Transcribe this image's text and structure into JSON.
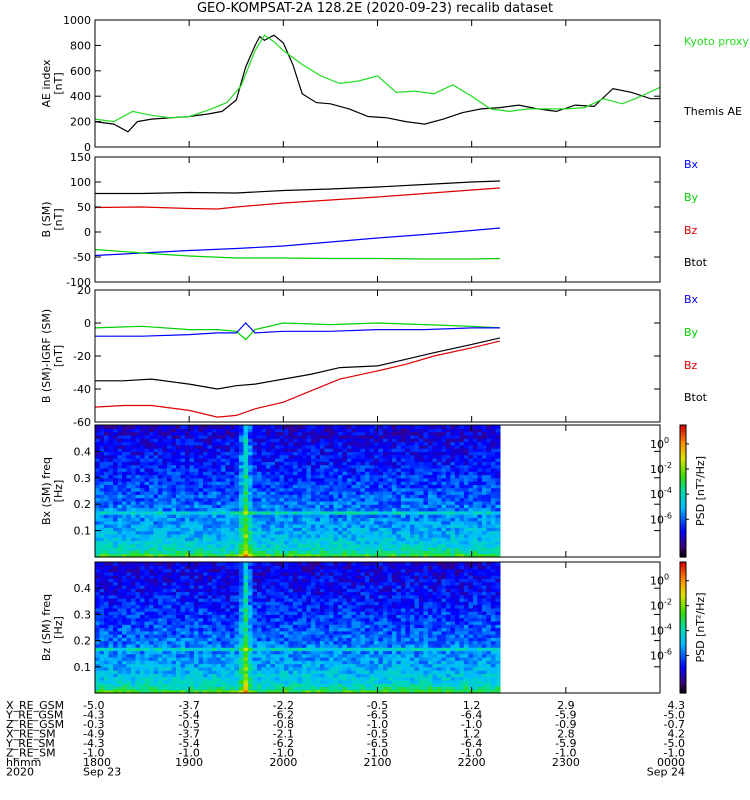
{
  "title": "GEO-KOMPSAT-2A 128.2E (2020-09-23) recalib dataset",
  "colors": {
    "black": "#000000",
    "red": "#e00000",
    "green": "#00d000",
    "blue": "#0000ff",
    "kyoto": "#22dd22"
  },
  "chart_data": [
    {
      "type": "line",
      "panel": "ae",
      "ylabel": "AE index [nT]",
      "ylim": [
        0,
        1000
      ],
      "yticks": [
        0,
        200,
        400,
        600,
        800,
        1000
      ],
      "xlim": [
        18,
        24
      ],
      "legend": [
        "Kyoto proxy AE",
        "Themis AE"
      ],
      "series": [
        {
          "name": "Themis AE",
          "color": "black",
          "x": [
            18.0,
            18.2,
            18.35,
            18.45,
            18.6,
            18.8,
            19.0,
            19.2,
            19.35,
            19.5,
            19.6,
            19.7,
            19.75,
            19.8,
            19.9,
            20.0,
            20.1,
            20.2,
            20.35,
            20.5,
            20.7,
            20.9,
            21.1,
            21.3,
            21.5,
            21.7,
            21.9,
            22.1,
            22.3,
            22.5,
            22.7,
            22.9,
            23.1,
            23.3,
            23.5,
            23.7,
            23.9,
            24.0
          ],
          "y": [
            200,
            180,
            120,
            200,
            220,
            230,
            240,
            260,
            280,
            370,
            630,
            800,
            870,
            840,
            880,
            820,
            650,
            420,
            350,
            340,
            300,
            240,
            230,
            200,
            180,
            220,
            270,
            300,
            310,
            330,
            300,
            280,
            330,
            320,
            460,
            430,
            380,
            380
          ]
        },
        {
          "name": "Kyoto proxy AE",
          "color": "kyoto",
          "x": [
            18.0,
            18.2,
            18.4,
            18.6,
            18.8,
            19.0,
            19.2,
            19.4,
            19.55,
            19.7,
            19.8,
            19.9,
            20.0,
            20.2,
            20.4,
            20.6,
            20.8,
            21.0,
            21.2,
            21.4,
            21.6,
            21.8,
            22.0,
            22.2,
            22.4,
            22.6,
            22.8,
            23.0,
            23.2,
            23.4,
            23.6,
            23.8,
            24.0
          ],
          "y": [
            220,
            200,
            280,
            250,
            230,
            240,
            290,
            350,
            480,
            760,
            880,
            830,
            760,
            650,
            560,
            500,
            520,
            560,
            430,
            440,
            420,
            490,
            400,
            300,
            280,
            300,
            300,
            300,
            310,
            380,
            340,
            400,
            470
          ]
        }
      ]
    },
    {
      "type": "line",
      "panel": "b",
      "ylabel": "B (SM) [nT]",
      "ylim": [
        -100,
        150
      ],
      "yticks": [
        -100,
        -50,
        0,
        50,
        100,
        150
      ],
      "xlim": [
        18,
        24
      ],
      "legend": [
        "Bx",
        "By",
        "Bz",
        "Btot"
      ],
      "series": [
        {
          "name": "Btot",
          "color": "black",
          "x": [
            18.0,
            18.5,
            19.0,
            19.5,
            20.0,
            20.5,
            21.0,
            21.5,
            22.0,
            22.3
          ],
          "y": [
            77,
            77,
            79,
            78,
            83,
            86,
            90,
            95,
            100,
            102
          ]
        },
        {
          "name": "Bz",
          "color": "red",
          "x": [
            18.0,
            18.5,
            19.0,
            19.3,
            19.5,
            20.0,
            20.5,
            21.0,
            21.5,
            22.0,
            22.3
          ],
          "y": [
            49,
            50,
            47,
            46,
            50,
            58,
            64,
            70,
            77,
            84,
            88
          ]
        },
        {
          "name": "Bx",
          "color": "blue",
          "x": [
            18.0,
            18.5,
            19.0,
            19.5,
            20.0,
            20.5,
            21.0,
            21.5,
            22.0,
            22.3
          ],
          "y": [
            -47,
            -42,
            -37,
            -33,
            -28,
            -20,
            -12,
            -5,
            3,
            8
          ]
        },
        {
          "name": "By",
          "color": "green",
          "x": [
            18.0,
            18.5,
            19.0,
            19.5,
            20.0,
            20.5,
            21.0,
            21.5,
            22.0,
            22.3
          ],
          "y": [
            -35,
            -42,
            -48,
            -52,
            -52,
            -53,
            -53,
            -54,
            -54,
            -53
          ]
        }
      ]
    },
    {
      "type": "line",
      "panel": "db",
      "ylabel": "B (SM)-IGRF (SM) [nT]",
      "ylim": [
        -60,
        20
      ],
      "yticks": [
        -60,
        -40,
        -20,
        0,
        20
      ],
      "xlim": [
        18,
        24
      ],
      "legend": [
        "Bx",
        "By",
        "Bz",
        "Btot"
      ],
      "series": [
        {
          "name": "By",
          "color": "green",
          "x": [
            18.0,
            18.5,
            19.0,
            19.3,
            19.5,
            19.6,
            19.7,
            20.0,
            20.5,
            21.0,
            21.5,
            22.0,
            22.3
          ],
          "y": [
            -3,
            -2,
            -4,
            -4,
            -5,
            -10,
            -4,
            0,
            -1,
            0,
            -1,
            -2,
            -3
          ]
        },
        {
          "name": "Bx",
          "color": "blue",
          "x": [
            18.0,
            18.5,
            19.0,
            19.3,
            19.5,
            19.6,
            19.7,
            20.0,
            20.5,
            21.0,
            21.5,
            22.0,
            22.3
          ],
          "y": [
            -8,
            -8,
            -7,
            -6,
            -6,
            0,
            -6,
            -5,
            -5,
            -4,
            -4,
            -3,
            -3
          ]
        },
        {
          "name": "Btot",
          "color": "black",
          "x": [
            18.0,
            18.3,
            18.6,
            19.0,
            19.3,
            19.5,
            19.7,
            20.0,
            20.3,
            20.6,
            21.0,
            21.3,
            21.6,
            22.0,
            22.3
          ],
          "y": [
            -35,
            -35,
            -34,
            -37,
            -40,
            -38,
            -37,
            -34,
            -31,
            -27,
            -26,
            -22,
            -18,
            -13,
            -9
          ]
        },
        {
          "name": "Bz",
          "color": "red",
          "x": [
            18.0,
            18.3,
            18.6,
            19.0,
            19.3,
            19.5,
            19.7,
            20.0,
            20.3,
            20.6,
            21.0,
            21.3,
            21.6,
            22.0,
            22.3
          ],
          "y": [
            -51,
            -50,
            -50,
            -53,
            -57,
            -56,
            -52,
            -48,
            -41,
            -34,
            -29,
            -25,
            -20,
            -15,
            -11
          ]
        }
      ]
    },
    {
      "type": "heatmap",
      "panel": "spec_bx",
      "ylabel": "Bx (SM) freq [Hz]",
      "ylim": [
        0,
        0.5
      ],
      "yticks": [
        0.1,
        0.2,
        0.3,
        0.4
      ],
      "xlim": [
        18,
        24
      ],
      "data_end": 22.3,
      "zlabel": "PSD [nT²/Hz]",
      "zlim_log10": [
        -9,
        1.5
      ],
      "zticks": [
        "10^0",
        "10^-2",
        "10^-4",
        "10^-6"
      ]
    },
    {
      "type": "heatmap",
      "panel": "spec_bz",
      "ylabel": "Bz (SM) freq [Hz]",
      "ylim": [
        0,
        0.5
      ],
      "yticks": [
        0.1,
        0.2,
        0.3,
        0.4
      ],
      "xlim": [
        18,
        24
      ],
      "data_end": 22.3,
      "zlabel": "PSD [nT²/Hz]",
      "zlim_log10": [
        -9,
        1.5
      ],
      "zticks": [
        "10^0",
        "10^-2",
        "10^-4",
        "10^-6"
      ]
    }
  ],
  "ephemeris": {
    "labels": [
      "X_RE_GSM",
      "Y_RE_GSM",
      "Z_RE_GSM",
      "X_RE_SM",
      "Y_RE_SM",
      "Z_RE_SM",
      "hhmm",
      "2020"
    ],
    "columns": [
      {
        "x": 18.0,
        "values": [
          "-5.0",
          "-4.3",
          "-0.3",
          "-4.9",
          "-4.3",
          "-1.0",
          "1800",
          "Sep 23"
        ]
      },
      {
        "x": 19.0,
        "values": [
          "-3.7",
          "-5.4",
          "-0.5",
          "-3.7",
          "-5.4",
          "-1.0",
          "1900",
          ""
        ]
      },
      {
        "x": 20.0,
        "values": [
          "-2.2",
          "-6.2",
          "-0.8",
          "-2.1",
          "-6.2",
          "-1.0",
          "2000",
          ""
        ]
      },
      {
        "x": 21.0,
        "values": [
          "-0.5",
          "-6.5",
          "-1.0",
          "-0.5",
          "-6.5",
          "-1.0",
          "2100",
          ""
        ]
      },
      {
        "x": 22.0,
        "values": [
          "1.2",
          "-6.4",
          "-1.0",
          "1.2",
          "-6.4",
          "-1.0",
          "2200",
          ""
        ]
      },
      {
        "x": 23.0,
        "values": [
          "2.9",
          "-5.9",
          "-0.9",
          "2.8",
          "-5.9",
          "-1.0",
          "2300",
          ""
        ]
      },
      {
        "x": 24.0,
        "values": [
          "4.3",
          "-5.0",
          "-0.7",
          "4.2",
          "-5.0",
          "-1.0",
          "0000",
          "Sep 24"
        ]
      }
    ]
  }
}
